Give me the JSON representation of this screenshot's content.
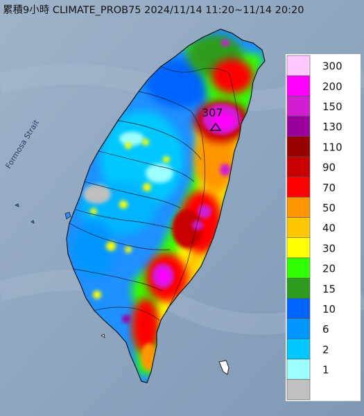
{
  "title": "累積9小時 CLIMATE_PROB75 2024/11/14 11:20~11/14 20:20",
  "strait_label": "Formosa Strait",
  "max_label": "307",
  "legend": [
    {
      "label": "300",
      "color": "#ffc8ff"
    },
    {
      "label": "200",
      "color": "#ff00ff"
    },
    {
      "label": "150",
      "color": "#d21ed2"
    },
    {
      "label": "130",
      "color": "#9b009b"
    },
    {
      "label": "110",
      "color": "#960000"
    },
    {
      "label": "90",
      "color": "#c80000"
    },
    {
      "label": "70",
      "color": "#ff0000"
    },
    {
      "label": "50",
      "color": "#ff9600"
    },
    {
      "label": "40",
      "color": "#ffc800"
    },
    {
      "label": "30",
      "color": "#ffff00"
    },
    {
      "label": "20",
      "color": "#32ff00"
    },
    {
      "label": "15",
      "color": "#2d9b1e"
    },
    {
      "label": "10",
      "color": "#0064ff"
    },
    {
      "label": "6",
      "color": "#0096ff"
    },
    {
      "label": "2",
      "color": "#00c8ff"
    },
    {
      "label": "1",
      "color": "#9bffff"
    },
    {
      "label": "",
      "color": "#c0c0c0"
    }
  ]
}
